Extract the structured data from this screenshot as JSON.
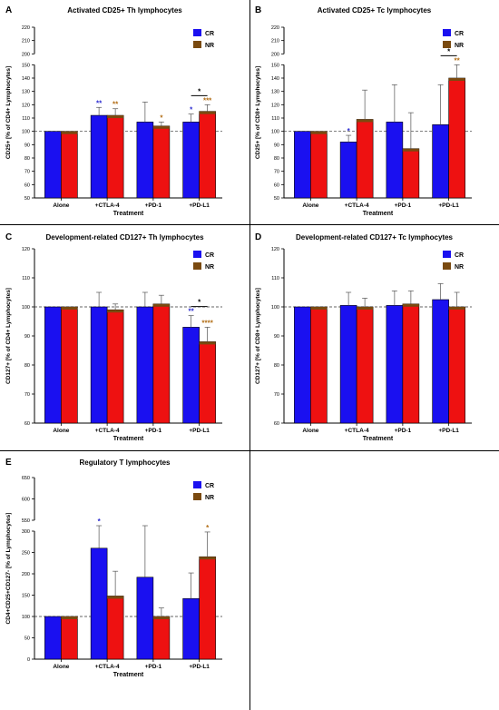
{
  "colors": {
    "cr": "#1a10f0",
    "nr": "#ee1111",
    "nr_cap": "#7a4a10",
    "cr_star": "#2a2ad0",
    "nr_star": "#b06a10",
    "axis": "#000000"
  },
  "legend": {
    "cr": "CR",
    "nr": "NR"
  },
  "chart_data": [
    {
      "letter": "A",
      "type": "bar",
      "title": "Activated CD25+ Th lymphocytes",
      "xlabel": "Treatment",
      "ylabel": "CD25+ [% of CD4+ Lymphocytes]",
      "categories": [
        "Alone",
        "+CTLA-4",
        "+PD-1",
        "+PD-L1"
      ],
      "series": [
        {
          "name": "CR",
          "values": [
            100,
            112,
            107,
            107
          ],
          "errors": [
            0,
            6,
            15,
            6
          ]
        },
        {
          "name": "NR",
          "values": [
            100,
            112,
            104,
            115
          ],
          "errors": [
            0,
            5,
            3,
            5
          ]
        }
      ],
      "ylim": [
        50,
        220
      ],
      "scale_break": [
        150,
        200
      ],
      "yticks": [
        50,
        60,
        70,
        80,
        90,
        100,
        110,
        120,
        130,
        140,
        150,
        200,
        210,
        220
      ],
      "reference_line": 100,
      "annotations": [
        {
          "cat": 1,
          "series": 0,
          "text": "**"
        },
        {
          "cat": 1,
          "series": 1,
          "text": "**"
        },
        {
          "cat": 2,
          "series": 1,
          "text": "*"
        },
        {
          "cat": 3,
          "series": 0,
          "text": "*"
        },
        {
          "cat": 3,
          "series": 1,
          "text": "***"
        }
      ],
      "bracket": {
        "cat": 3,
        "text": "*"
      }
    },
    {
      "letter": "B",
      "type": "bar",
      "title": "Activated CD25+ Tc lymphocytes",
      "xlabel": "Treatment",
      "ylabel": "CD25+ [% of CD8+ Lymphocytes]",
      "categories": [
        "Alone",
        "+CTLA-4",
        "+PD-1",
        "+PD-L1"
      ],
      "series": [
        {
          "name": "CR",
          "values": [
            100,
            92,
            107,
            105
          ],
          "errors": [
            0,
            5,
            28,
            30
          ]
        },
        {
          "name": "NR",
          "values": [
            100,
            109,
            87,
            140
          ],
          "errors": [
            0,
            22,
            27,
            10
          ]
        }
      ],
      "ylim": [
        50,
        220
      ],
      "scale_break": [
        150,
        200
      ],
      "yticks": [
        50,
        60,
        70,
        80,
        90,
        100,
        110,
        120,
        130,
        140,
        150,
        200,
        210,
        220
      ],
      "reference_line": 100,
      "annotations": [
        {
          "cat": 1,
          "series": 0,
          "text": "*"
        },
        {
          "cat": 3,
          "series": 1,
          "text": "**"
        }
      ],
      "bracket": {
        "cat": 3,
        "text": "*"
      }
    },
    {
      "letter": "C",
      "type": "bar",
      "title": "Development-related CD127+ Th lymphocytes",
      "xlabel": "Treatment",
      "ylabel": "CD127+ [% of CD4+ Lymphocytes]",
      "categories": [
        "Alone",
        "+CTLA-4",
        "+PD-1",
        "+PD-L1"
      ],
      "series": [
        {
          "name": "CR",
          "values": [
            100,
            100,
            100,
            93
          ],
          "errors": [
            0,
            5,
            5,
            4
          ]
        },
        {
          "name": "NR",
          "values": [
            100,
            99,
            101,
            88
          ],
          "errors": [
            0,
            2,
            3,
            5
          ]
        }
      ],
      "ylim": [
        60,
        120
      ],
      "yticks": [
        60,
        70,
        80,
        90,
        100,
        110,
        120
      ],
      "reference_line": 100,
      "annotations": [
        {
          "cat": 3,
          "series": 0,
          "text": "**"
        },
        {
          "cat": 3,
          "series": 1,
          "text": "****"
        }
      ],
      "bracket": {
        "cat": 3,
        "text": "*"
      }
    },
    {
      "letter": "D",
      "type": "bar",
      "title": "Development-related CD127+ Tc lymphocytes",
      "xlabel": "Treatment",
      "ylabel": "CD127+ [% of CD8+ Lymphocytes]",
      "categories": [
        "Alone",
        "+CTLA-4",
        "+PD-1",
        "+PD-L1"
      ],
      "series": [
        {
          "name": "CR",
          "values": [
            100,
            100.5,
            100.5,
            102.5
          ],
          "errors": [
            0,
            4.5,
            5,
            5.5
          ]
        },
        {
          "name": "NR",
          "values": [
            100,
            100,
            101,
            100
          ],
          "errors": [
            0,
            3,
            4.5,
            5
          ]
        }
      ],
      "ylim": [
        60,
        120
      ],
      "yticks": [
        60,
        70,
        80,
        90,
        100,
        110,
        120
      ],
      "reference_line": 100,
      "annotations": []
    },
    {
      "letter": "E",
      "type": "bar",
      "title": "Regulatory T lymphocytes",
      "xlabel": "Treatment",
      "ylabel": "CD4+CD25+CD127- [% of Lymphocytes]",
      "categories": [
        "Alone",
        "+CTLA-4",
        "+PD-1",
        "+PD-L1"
      ],
      "series": [
        {
          "name": "CR",
          "values": [
            100,
            260,
            192,
            142
          ],
          "errors": [
            0,
            70,
            158,
            60
          ]
        },
        {
          "name": "NR",
          "values": [
            100,
            148,
            100,
            240
          ],
          "errors": [
            0,
            58,
            20,
            58
          ]
        }
      ],
      "ylim": [
        0,
        650
      ],
      "scale_break": [
        300,
        550
      ],
      "yticks": [
        0,
        50,
        100,
        150,
        200,
        250,
        300,
        550,
        600,
        650
      ],
      "reference_line": 100,
      "annotations": [
        {
          "cat": 1,
          "series": 0,
          "text": "*"
        },
        {
          "cat": 3,
          "series": 1,
          "text": "*"
        }
      ]
    }
  ]
}
